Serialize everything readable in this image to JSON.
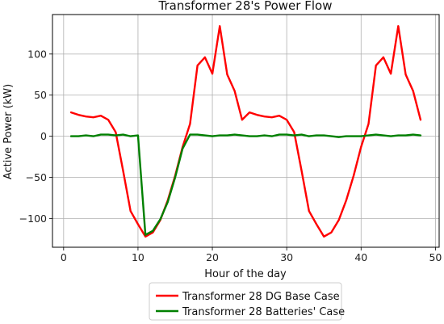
{
  "chart_data": {
    "type": "line",
    "title": "Transformer 28's Power Flow",
    "xlabel": "Hour of the day",
    "ylabel": "Active Power (kW)",
    "xlim": [
      -1.5,
      50.5
    ],
    "ylim": [
      -135,
      148
    ],
    "xticks": [
      0,
      10,
      20,
      30,
      40,
      50
    ],
    "yticks": [
      -100,
      -50,
      0,
      50,
      100
    ],
    "grid": true,
    "legend_position": "bottom-center",
    "x": [
      1,
      2,
      3,
      4,
      5,
      6,
      7,
      8,
      9,
      10,
      11,
      12,
      13,
      14,
      15,
      16,
      17,
      18,
      19,
      20,
      21,
      22,
      23,
      24,
      25,
      26,
      27,
      28,
      29,
      30,
      31,
      32,
      33,
      34,
      35,
      36,
      37,
      38,
      39,
      40,
      41,
      42,
      43,
      44,
      45,
      46,
      47,
      48
    ],
    "series": [
      {
        "name": "Transformer 28 DG Base Case",
        "color": "#ff0000",
        "values": [
          29,
          26,
          24,
          23,
          25,
          20,
          5,
          -42,
          -91,
          -107,
          -122,
          -117,
          -102,
          -78,
          -48,
          -13,
          15,
          86,
          96,
          76,
          134,
          75,
          55,
          20,
          29,
          26,
          24,
          23,
          25,
          20,
          5,
          -42,
          -91,
          -107,
          -122,
          -117,
          -102,
          -78,
          -48,
          -13,
          15,
          86,
          96,
          76,
          134,
          75,
          55,
          20
        ]
      },
      {
        "name": "Transformer 28 Batteries' Case",
        "color": "#008000",
        "values": [
          0,
          0,
          1,
          0,
          2,
          2,
          1,
          2,
          0,
          1,
          -120,
          -115,
          -101,
          -80,
          -50,
          -15,
          2,
          2,
          1,
          0,
          1,
          1,
          2,
          1,
          0,
          0,
          1,
          0,
          2,
          2,
          1,
          2,
          0,
          1,
          1,
          0,
          -1,
          0,
          0,
          0,
          1,
          2,
          1,
          0,
          1,
          1,
          2,
          1
        ]
      }
    ]
  }
}
